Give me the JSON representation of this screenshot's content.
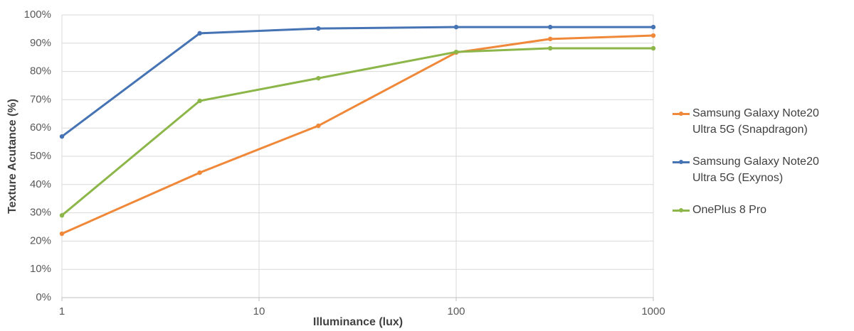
{
  "chart_data": {
    "type": "line",
    "x_label": "Illuminance (lux)",
    "y_label": "Texture Acutance (%)",
    "x": [
      1,
      5,
      20,
      100,
      300,
      1000
    ],
    "series": [
      {
        "name": "Samsung Galaxy Note20 Ultra 5G (Snapdragon)",
        "color": "#f0883a",
        "values": [
          22.6,
          44.2,
          60.8,
          86.7,
          91.5,
          92.7
        ]
      },
      {
        "name": "Samsung Galaxy Note20 Ultra 5G (Exynos)",
        "color": "#4673b4",
        "values": [
          57,
          93.5,
          95.2,
          95.7,
          95.7,
          95.7
        ]
      },
      {
        "name": "OnePlus 8 Pro",
        "color": "#8cb649",
        "values": [
          29.1,
          69.6,
          77.6,
          86.9,
          88.2,
          88.2
        ]
      }
    ],
    "xlim": [
      1,
      1000
    ],
    "xticks": [
      1,
      10,
      100,
      1000
    ],
    "xscale": "log",
    "ylim": [
      0,
      100
    ],
    "yticks": [
      {
        "value": 0,
        "label": "0%"
      },
      {
        "value": 10,
        "label": "10%"
      },
      {
        "value": 20,
        "label": "20%"
      },
      {
        "value": 30,
        "label": "30%"
      },
      {
        "value": 40,
        "label": "40%"
      },
      {
        "value": 50,
        "label": "50%"
      },
      {
        "value": 60,
        "label": "60%"
      },
      {
        "value": 70,
        "label": "70%"
      },
      {
        "value": 80,
        "label": "80%"
      },
      {
        "value": 90,
        "label": "90%"
      },
      {
        "value": 100,
        "label": "100%"
      }
    ],
    "grid": true
  }
}
